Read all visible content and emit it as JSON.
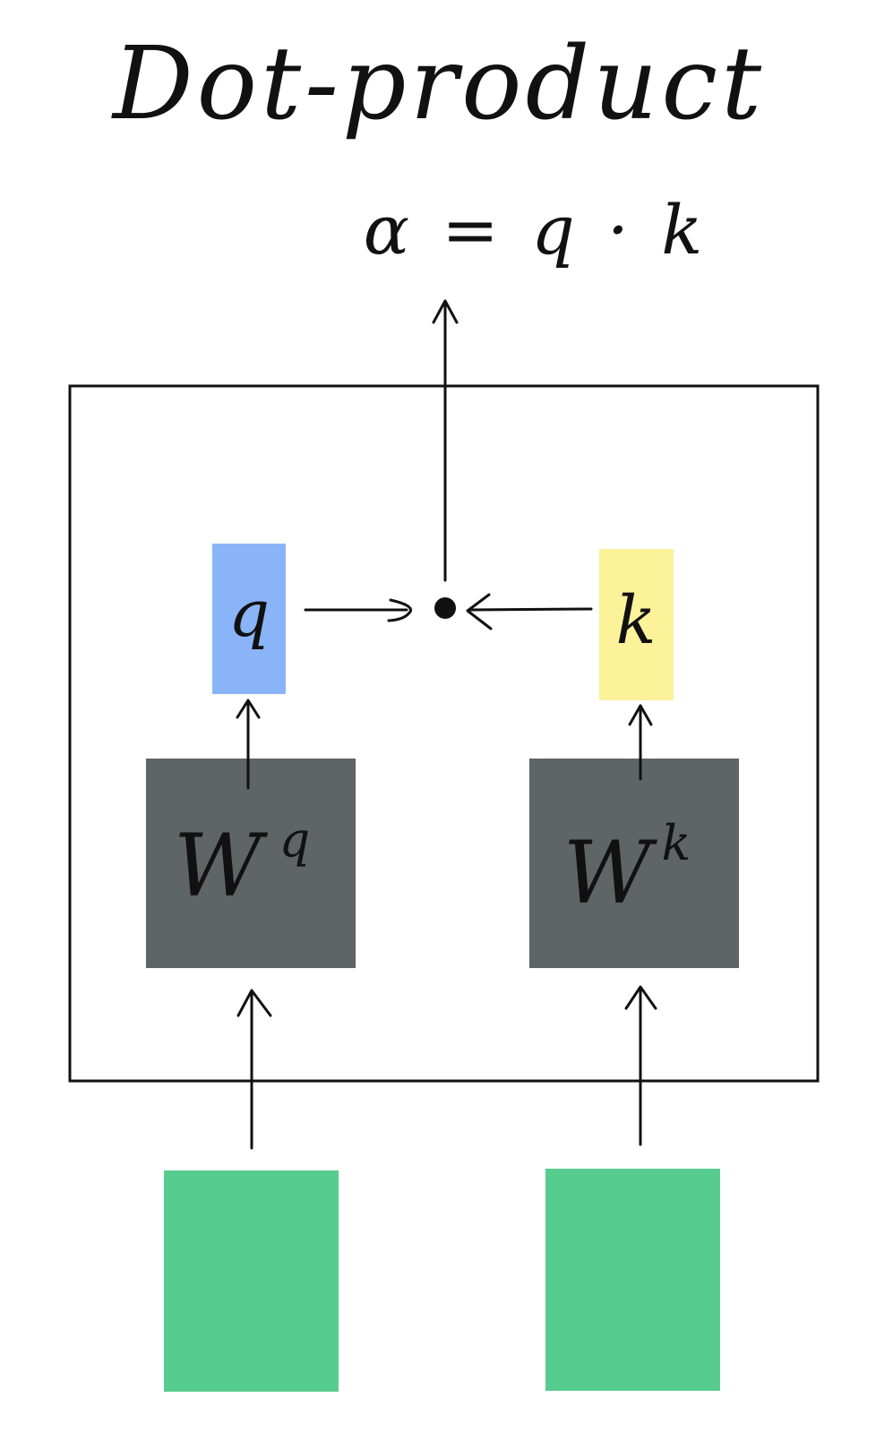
{
  "title": "Dot-product",
  "formula": "α = q · k",
  "query_vector": {
    "label": "q",
    "color": "#8ab4f8"
  },
  "key_vector": {
    "label": "k",
    "color": "#fbf29a"
  },
  "query_weight": {
    "base": "W",
    "superscript": "q",
    "color": "#5f6466"
  },
  "key_weight": {
    "base": "W",
    "superscript": "k",
    "color": "#5f6466"
  },
  "input_left": {
    "color": "#57cc8f"
  },
  "input_right": {
    "color": "#57cc8f"
  },
  "dot_symbol": "•",
  "box_border_color": "#111111"
}
